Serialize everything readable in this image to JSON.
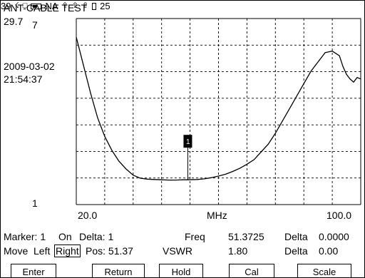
{
  "header": {
    "title": "ANT-CABLE TEST",
    "counter": "39",
    "na_label": "NA",
    "slot_count": "25"
  },
  "plot": {
    "y_max_label": "29.7",
    "y_top_label": "7",
    "y_bottom_label": "1",
    "date": "2009-03-02",
    "time": "21:54:37",
    "marker_label": "1",
    "x_start_label": "20.0",
    "x_unit_label": "MHz",
    "x_end_label": "100.0"
  },
  "readout": {
    "marker": "Marker: 1",
    "state": "On",
    "delta_marker": "Delta: 1",
    "freq_label": "Freq",
    "freq_value": "51.3725",
    "delta_freq_label": "Delta",
    "delta_freq_value": "0.0000",
    "move_label": "Move",
    "left_option": "Left",
    "right_option": "Right",
    "pos_label": "Pos: 51.37",
    "vswr_label": "VSWR",
    "vswr_value": "1.80",
    "delta_vswr_label": "Delta",
    "delta_vswr_value": "0.00"
  },
  "softkeys": {
    "enter": "Enter",
    "return": "Return",
    "hold": "Hold",
    "cal": "Cal",
    "scale": "Scale"
  },
  "chart_data": {
    "type": "line",
    "xlabel": "MHz",
    "xlim": [
      20.0,
      100.0
    ],
    "ylim": [
      1,
      7
    ],
    "grid": true,
    "x_ticks": [
      "20.0",
      "100.0"
    ],
    "y_ticks": [
      "1",
      "7"
    ],
    "marker": {
      "x": 51.37,
      "label": "1",
      "vswr": 1.8
    },
    "series": [
      {
        "x": [
          20.0,
          22.0,
          24.0,
          26.0,
          28.0,
          30.0,
          32.0,
          34.0,
          36.0,
          38.0,
          40.0,
          42.0,
          44.0,
          46.0,
          48.0,
          50.0,
          51.37,
          54.0,
          56.0,
          58.0,
          60.0,
          62.0,
          64.0,
          66.0,
          68.0,
          70.0,
          72.0,
          74.0,
          76.0,
          78.0,
          80.0,
          82.0,
          84.0,
          86.0,
          88.0,
          90.0,
          92.0,
          94.0,
          95.0,
          96.0,
          97.0,
          98.0,
          99.0,
          100.0
        ],
        "y": [
          6.4,
          5.5,
          4.6,
          3.8,
          3.2,
          2.75,
          2.4,
          2.15,
          1.95,
          1.85,
          1.82,
          1.81,
          1.8,
          1.79,
          1.79,
          1.8,
          1.8,
          1.81,
          1.83,
          1.87,
          1.92,
          1.98,
          2.07,
          2.17,
          2.3,
          2.45,
          2.7,
          2.95,
          3.3,
          3.7,
          4.1,
          4.5,
          4.9,
          5.3,
          5.6,
          5.9,
          5.95,
          5.8,
          5.45,
          5.2,
          5.05,
          4.95,
          5.1,
          5.05
        ]
      }
    ]
  }
}
